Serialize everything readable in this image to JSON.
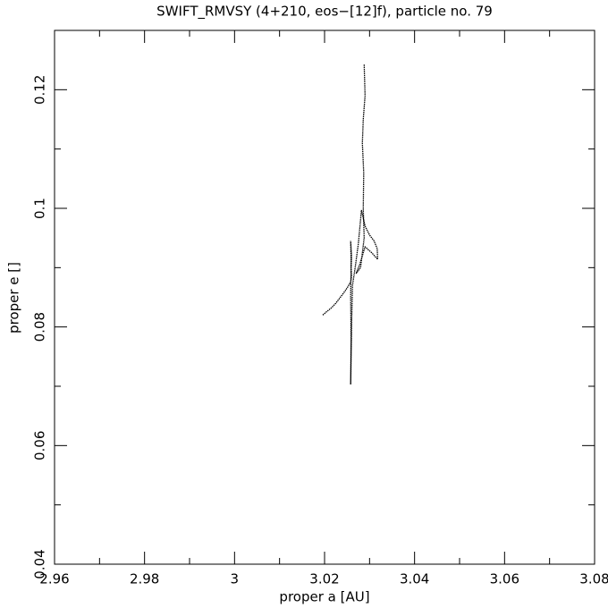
{
  "chart_data": {
    "type": "line",
    "title": "SWIFT_RMVSY (4+210, eos−[12]f), particle no. 79",
    "xlabel": "proper a [AU]",
    "ylabel": "proper e []",
    "color": "#000000",
    "xlim": [
      2.96,
      3.08
    ],
    "ylim": [
      0.04,
      0.13
    ],
    "xticks": [
      2.96,
      2.98,
      3,
      3.02,
      3.04,
      3.06,
      3.08
    ],
    "yticks": [
      0.04,
      0.06,
      0.08,
      0.1,
      0.12
    ],
    "xminor_ticks": [
      2.97,
      2.99,
      3.01,
      3.03,
      3.05,
      3.07
    ],
    "yminor_ticks": [
      0.05,
      0.07,
      0.09,
      0.11
    ],
    "x": [
      3.0196,
      3.0205,
      3.0215,
      3.0225,
      3.0235,
      3.0245,
      3.0252,
      3.0258,
      3.026,
      3.0259,
      3.026,
      3.0258,
      3.0259,
      3.0258,
      3.0259,
      3.0258,
      3.026,
      3.0262,
      3.0268,
      3.0275,
      3.0282,
      3.029,
      3.03,
      3.031,
      3.0317,
      3.0318,
      3.0305,
      3.029,
      3.0278,
      3.027,
      3.028,
      3.0288,
      3.0286,
      3.0287,
      3.0284,
      3.0286,
      3.029,
      3.0288
    ],
    "y": [
      0.082,
      0.0826,
      0.0832,
      0.084,
      0.085,
      0.086,
      0.0868,
      0.0876,
      0.0885,
      0.09,
      0.092,
      0.0945,
      0.091,
      0.085,
      0.078,
      0.0703,
      0.08,
      0.087,
      0.09,
      0.094,
      0.0997,
      0.097,
      0.0955,
      0.0945,
      0.0932,
      0.0914,
      0.0925,
      0.0935,
      0.0905,
      0.089,
      0.09,
      0.095,
      0.1,
      0.106,
      0.111,
      0.115,
      0.119,
      0.1243
    ]
  }
}
